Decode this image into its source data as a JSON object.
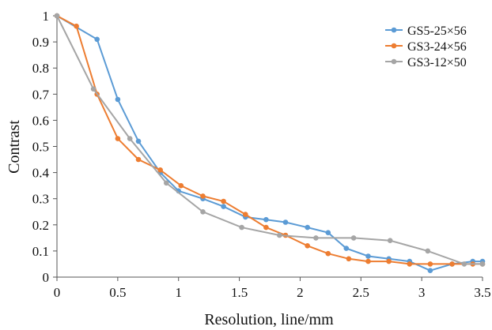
{
  "chart_data": {
    "type": "line",
    "title": "",
    "xlabel": "Resolution, line/mm",
    "ylabel": "Contrast",
    "xlim": [
      0,
      3.5
    ],
    "ylim": [
      0,
      1
    ],
    "x_ticks": [
      "0",
      "0.5",
      "1",
      "1.5",
      "2",
      "2.5",
      "3",
      "3.5"
    ],
    "y_ticks": [
      "0",
      "0.1",
      "0.2",
      "0.3",
      "0.4",
      "0.5",
      "0.6",
      "0.7",
      "0.8",
      "0.9",
      "1"
    ],
    "grid": false,
    "legend_position": "top-right",
    "series": [
      {
        "name": "GS5-25×56",
        "color": "#5b9bd5",
        "points": [
          [
            0,
            1.0
          ],
          [
            0.33,
            0.91
          ],
          [
            0.5,
            0.68
          ],
          [
            0.67,
            0.52
          ],
          [
            0.85,
            0.4
          ],
          [
            1.0,
            0.33
          ],
          [
            1.2,
            0.3
          ],
          [
            1.37,
            0.27
          ],
          [
            1.55,
            0.23
          ],
          [
            1.72,
            0.22
          ],
          [
            1.88,
            0.21
          ],
          [
            2.06,
            0.19
          ],
          [
            2.23,
            0.17
          ],
          [
            2.38,
            0.11
          ],
          [
            2.56,
            0.08
          ],
          [
            2.73,
            0.07
          ],
          [
            2.9,
            0.06
          ],
          [
            3.07,
            0.025
          ],
          [
            3.25,
            0.05
          ],
          [
            3.42,
            0.06
          ],
          [
            3.5,
            0.06
          ]
        ]
      },
      {
        "name": "GS3-24×56",
        "color": "#ed7d31",
        "points": [
          [
            0,
            1.0
          ],
          [
            0.16,
            0.96
          ],
          [
            0.33,
            0.7
          ],
          [
            0.5,
            0.53
          ],
          [
            0.67,
            0.45
          ],
          [
            0.85,
            0.41
          ],
          [
            1.02,
            0.35
          ],
          [
            1.2,
            0.31
          ],
          [
            1.37,
            0.29
          ],
          [
            1.55,
            0.24
          ],
          [
            1.72,
            0.19
          ],
          [
            1.88,
            0.16
          ],
          [
            2.06,
            0.12
          ],
          [
            2.23,
            0.09
          ],
          [
            2.4,
            0.07
          ],
          [
            2.56,
            0.06
          ],
          [
            2.73,
            0.06
          ],
          [
            2.9,
            0.05
          ],
          [
            3.07,
            0.05
          ],
          [
            3.25,
            0.05
          ],
          [
            3.42,
            0.05
          ],
          [
            3.5,
            0.05
          ]
        ]
      },
      {
        "name": "GS3-12×50",
        "color": "#a5a5a5",
        "points": [
          [
            0,
            1.0
          ],
          [
            0.3,
            0.72
          ],
          [
            0.6,
            0.53
          ],
          [
            0.9,
            0.36
          ],
          [
            1.2,
            0.25
          ],
          [
            1.52,
            0.19
          ],
          [
            1.83,
            0.16
          ],
          [
            2.13,
            0.15
          ],
          [
            2.44,
            0.15
          ],
          [
            2.74,
            0.14
          ],
          [
            3.05,
            0.1
          ],
          [
            3.35,
            0.05
          ],
          [
            3.5,
            0.05
          ]
        ]
      }
    ]
  }
}
